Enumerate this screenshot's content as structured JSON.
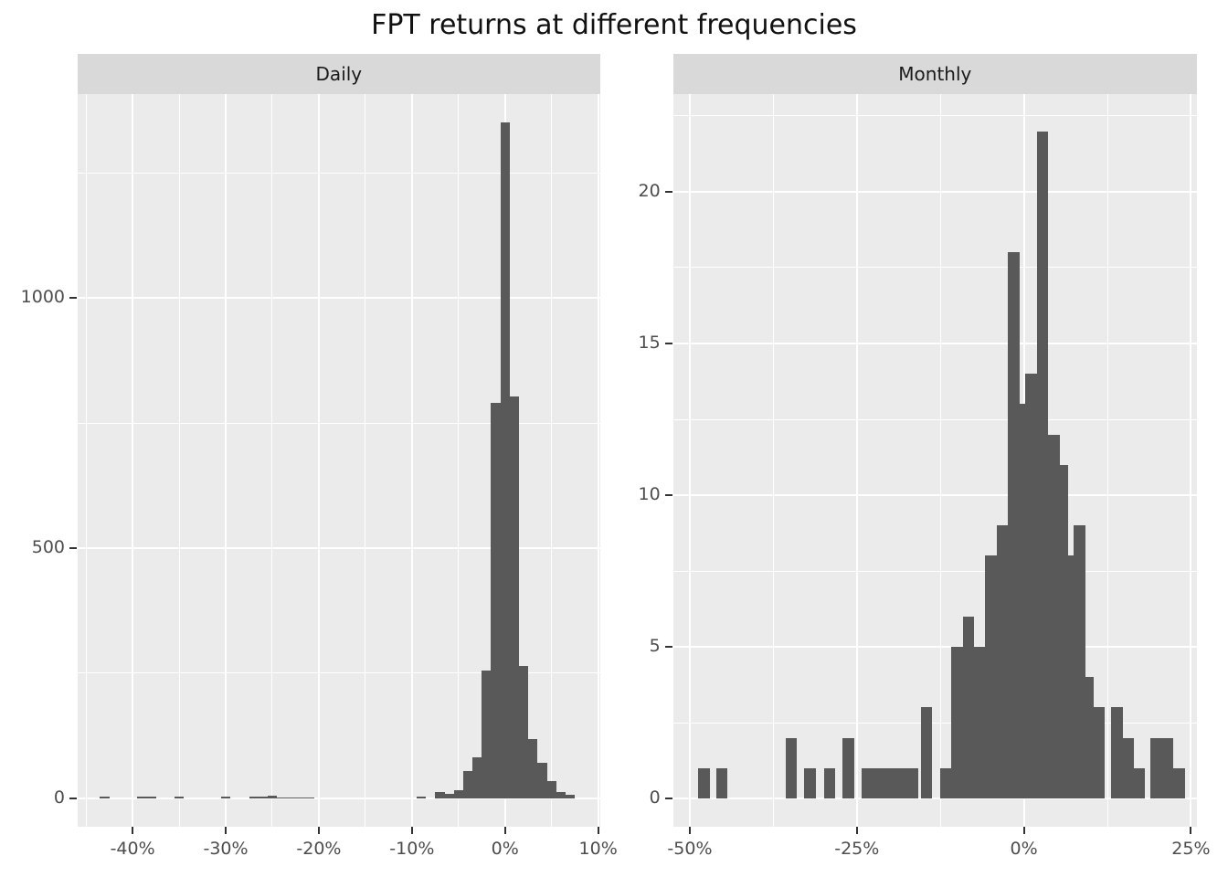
{
  "title": "FPT returns at different frequencies",
  "colors": {
    "bar_fill": "#595959",
    "panel_background": "#EBEBEB",
    "strip_background": "#D9D9D9",
    "gridline": "#FFFFFF",
    "axis_text": "#4D4D4D",
    "tick_mark": "#333333",
    "title_text": "#111111",
    "strip_text": "#1A1A1A"
  },
  "chart_data": [
    {
      "type": "bar",
      "subtype": "histogram",
      "facet_label": "Daily",
      "title": "Daily",
      "xlabel": "",
      "ylabel": "",
      "grid": "on",
      "legend": "none",
      "bin_width_pct": 1.0,
      "xlim": [
        -45.9,
        10.2
      ],
      "ylim": [
        -56.6,
        1407
      ],
      "x_ticks": [
        {
          "v": -40,
          "label": "-40%"
        },
        {
          "v": -30,
          "label": "-30%"
        },
        {
          "v": -20,
          "label": "-20%"
        },
        {
          "v": -10,
          "label": "-10%"
        },
        {
          "v": 0,
          "label": "0%"
        },
        {
          "v": 10,
          "label": "10%"
        }
      ],
      "y_ticks": [
        {
          "v": 0,
          "label": "0"
        },
        {
          "v": 500,
          "label": "500"
        },
        {
          "v": 1000,
          "label": "1000"
        }
      ],
      "x_minor": [
        -45,
        -35,
        -25,
        -15,
        -5,
        5
      ],
      "y_minor": [
        250,
        750,
        1250
      ],
      "bins": [
        {
          "x": -43,
          "count": 4
        },
        {
          "x": -39,
          "count": 3
        },
        {
          "x": -38,
          "count": 3
        },
        {
          "x": -35,
          "count": 4
        },
        {
          "x": -30,
          "count": 3
        },
        {
          "x": -27,
          "count": 3
        },
        {
          "x": -26,
          "count": 3
        },
        {
          "x": -25,
          "count": 6
        },
        {
          "x": -24,
          "count": 2
        },
        {
          "x": -23,
          "count": 2
        },
        {
          "x": -22,
          "count": 2
        },
        {
          "x": -21,
          "count": 2
        },
        {
          "x": -9,
          "count": 4
        },
        {
          "x": -7,
          "count": 13
        },
        {
          "x": -6,
          "count": 9
        },
        {
          "x": -5,
          "count": 17
        },
        {
          "x": -4,
          "count": 54
        },
        {
          "x": -3,
          "count": 83
        },
        {
          "x": -2,
          "count": 256
        },
        {
          "x": -1,
          "count": 790
        },
        {
          "x": 0,
          "count": 1351
        },
        {
          "x": 1,
          "count": 803
        },
        {
          "x": 2,
          "count": 265
        },
        {
          "x": 3,
          "count": 118
        },
        {
          "x": 4,
          "count": 71
        },
        {
          "x": 5,
          "count": 34
        },
        {
          "x": 6,
          "count": 12
        },
        {
          "x": 7,
          "count": 8
        }
      ]
    },
    {
      "type": "bar",
      "subtype": "histogram",
      "facet_label": "Monthly",
      "title": "Monthly",
      "xlabel": "",
      "ylabel": "",
      "grid": "on",
      "legend": "none",
      "bin_width_pct": 1.72,
      "xlim": [
        -52.5,
        25.9
      ],
      "ylim": [
        -0.93,
        23.22
      ],
      "x_ticks": [
        {
          "v": -50,
          "label": "-50%"
        },
        {
          "v": -25,
          "label": "-25%"
        },
        {
          "v": 0,
          "label": "0%"
        },
        {
          "v": 25,
          "label": "25%"
        }
      ],
      "y_ticks": [
        {
          "v": 0,
          "label": "0"
        },
        {
          "v": 5,
          "label": "5"
        },
        {
          "v": 10,
          "label": "10"
        },
        {
          "v": 15,
          "label": "15"
        },
        {
          "v": 20,
          "label": "20"
        }
      ],
      "x_minor": [
        -37.5,
        -12.5,
        12.5
      ],
      "y_minor": [
        2.5,
        7.5,
        12.5,
        17.5,
        22.5
      ],
      "bins": [
        {
          "x": -47.9,
          "count": 1
        },
        {
          "x": -45.2,
          "count": 1
        },
        {
          "x": -34.8,
          "count": 2
        },
        {
          "x": -32.0,
          "count": 1
        },
        {
          "x": -29.1,
          "count": 1
        },
        {
          "x": -26.3,
          "count": 2
        },
        {
          "x": -23.4,
          "count": 1
        },
        {
          "x": -21.7,
          "count": 1
        },
        {
          "x": -20.0,
          "count": 1
        },
        {
          "x": -18.3,
          "count": 1
        },
        {
          "x": -16.6,
          "count": 1
        },
        {
          "x": -14.6,
          "count": 3
        },
        {
          "x": -11.7,
          "count": 1
        },
        {
          "x": -10.0,
          "count": 5
        },
        {
          "x": -8.3,
          "count": 6
        },
        {
          "x": -6.6,
          "count": 5
        },
        {
          "x": -4.9,
          "count": 8
        },
        {
          "x": -3.2,
          "count": 9
        },
        {
          "x": -1.5,
          "count": 18
        },
        {
          "x": -0.2,
          "count": 13
        },
        {
          "x": 1.1,
          "count": 14
        },
        {
          "x": 2.8,
          "count": 22
        },
        {
          "x": 4.5,
          "count": 12
        },
        {
          "x": 5.7,
          "count": 11
        },
        {
          "x": 7.0,
          "count": 8
        },
        {
          "x": 8.3,
          "count": 9
        },
        {
          "x": 9.6,
          "count": 4
        },
        {
          "x": 11.3,
          "count": 3
        },
        {
          "x": 13.9,
          "count": 3
        },
        {
          "x": 15.6,
          "count": 2
        },
        {
          "x": 17.3,
          "count": 1
        },
        {
          "x": 19.8,
          "count": 2
        },
        {
          "x": 21.5,
          "count": 2
        },
        {
          "x": 23.2,
          "count": 1
        }
      ]
    }
  ]
}
